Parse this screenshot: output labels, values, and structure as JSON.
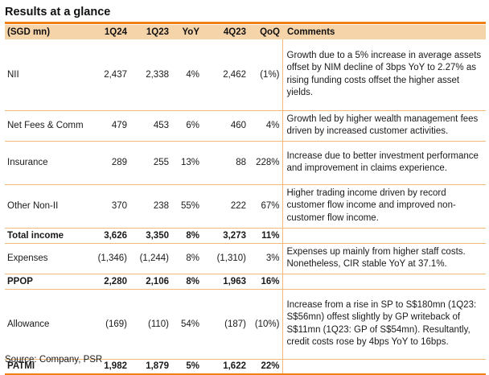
{
  "title": "Results at a glance",
  "headers": [
    "(SGD mn)",
    "1Q24",
    "1Q23",
    "YoY",
    "4Q23",
    "QoQ",
    "Comments"
  ],
  "rows": [
    {
      "label": "NII",
      "q1_24": "2,437",
      "q1_23": "2,338",
      "yoy": "4%",
      "q4_23": "2,462",
      "qoq": "(1%)",
      "comment": "Growth due to a 5% increase in average assets offset by NIM decline of 3bps YoY to 2.27% as rising funding costs offset the higher asset yields."
    },
    {
      "label": "Net Fees & Comm",
      "q1_24": "479",
      "q1_23": "453",
      "yoy": "6%",
      "q4_23": "460",
      "qoq": "4%",
      "comment": "Growth led by higher wealth management fees driven by increased customer activities."
    },
    {
      "label": "Insurance",
      "q1_24": "289",
      "q1_23": "255",
      "yoy": "13%",
      "q4_23": "88",
      "qoq": "228%",
      "comment": "Increase due to better investment performance and improvement in claims experience."
    },
    {
      "label": "Other Non-II",
      "q1_24": "370",
      "q1_23": "238",
      "yoy": "55%",
      "q4_23": "222",
      "qoq": "67%",
      "comment": "Higher trading income driven by record customer flow income and improved non-customer flow income."
    },
    {
      "label": "Total income",
      "q1_24": "3,626",
      "q1_23": "3,350",
      "yoy": "8%",
      "q4_23": "3,273",
      "qoq": "11%",
      "comment": ""
    },
    {
      "label": "Expenses",
      "q1_24": "(1,346)",
      "q1_23": "(1,244)",
      "yoy": "8%",
      "q4_23": "(1,310)",
      "qoq": "3%",
      "comment": "Expenses up mainly from higher staff costs. Nonetheless, CIR stable YoY at 37.1%."
    },
    {
      "label": "PPOP",
      "q1_24": "2,280",
      "q1_23": "2,106",
      "yoy": "8%",
      "q4_23": "1,963",
      "qoq": "16%",
      "comment": ""
    },
    {
      "label": "Allowance",
      "q1_24": "(169)",
      "q1_23": "(110)",
      "yoy": "54%",
      "q4_23": "(187)",
      "qoq": "(10%)",
      "comment": "Increase from a rise in SP to S$180mn (1Q23: S$56mn) offest slightly by GP writeback of S$11mn (1Q23: GP of S$54mn). Resultantly, credit costs rose by 4bps YoY to 16bps."
    },
    {
      "label": "PATMI",
      "q1_24": "1,982",
      "q1_23": "1,879",
      "yoy": "5%",
      "q4_23": "1,622",
      "qoq": "22%",
      "comment": ""
    }
  ],
  "source": "Source: Company, PSR",
  "colors": {
    "accent": "#f07f14",
    "header_bg": "#f6d4a9",
    "rule": "#f3b979"
  }
}
